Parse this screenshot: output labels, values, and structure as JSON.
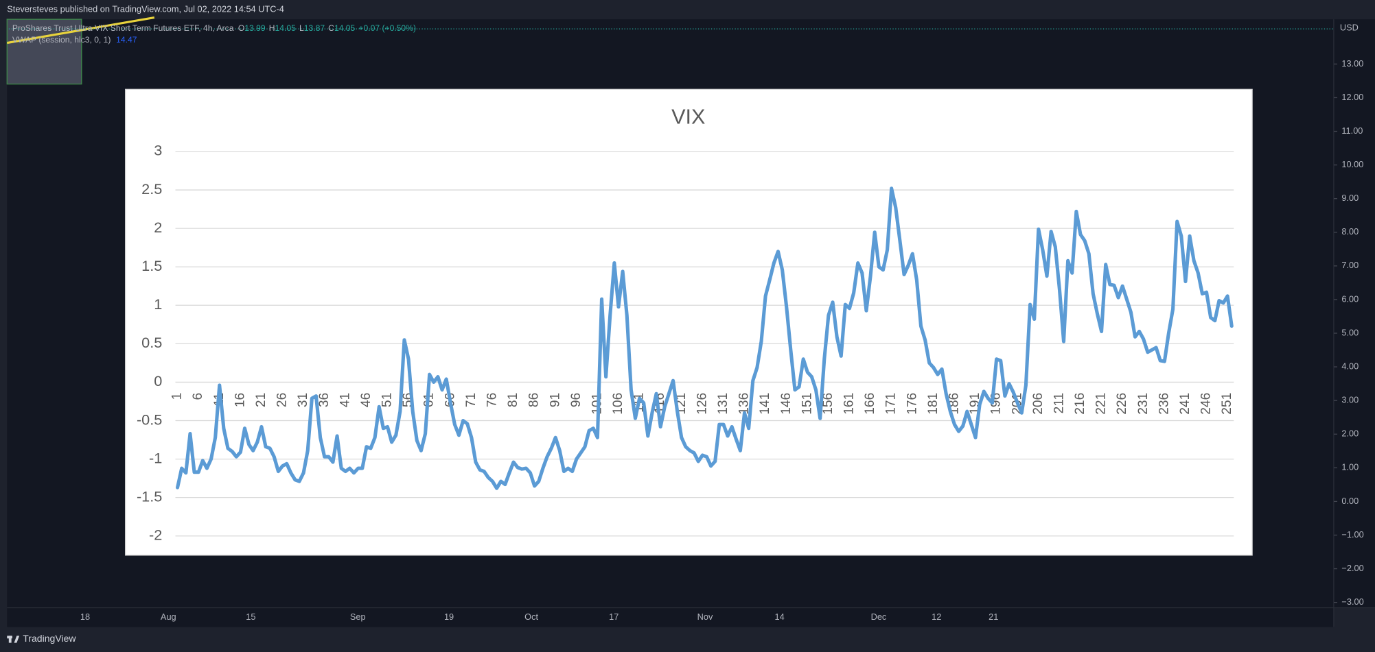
{
  "header": {
    "title": "Steversteves published on TradingView.com, Jul 02, 2022 14:54 UTC-4"
  },
  "legend": {
    "symbol": "ProShares Trust Ultra VIX Short Term Futures ETF, 4h, Arca",
    "ohlc": [
      {
        "label": "O",
        "value": "13.99"
      },
      {
        "label": "H",
        "value": "14.05"
      },
      {
        "label": "L",
        "value": "13.87"
      },
      {
        "label": "C",
        "value": "14.05"
      }
    ],
    "change": "+0.07 (+0.50%)",
    "indicator": {
      "name": "VWAP (session, hlc3, 0, 1)",
      "value": "14.47"
    }
  },
  "price_axis": {
    "currency": "USD",
    "ylim": [
      -3.16,
      14.33
    ],
    "yticks": [
      {
        "value": 13,
        "label": "13.00"
      },
      {
        "value": 12,
        "label": "12.00"
      },
      {
        "value": 11,
        "label": "11.00"
      },
      {
        "value": 10,
        "label": "10.00"
      },
      {
        "value": 9,
        "label": "9.00"
      },
      {
        "value": 8,
        "label": "8.00"
      },
      {
        "value": 7,
        "label": "7.00"
      },
      {
        "value": 6,
        "label": "6.00"
      },
      {
        "value": 5,
        "label": "5.00"
      },
      {
        "value": 4,
        "label": "4.00"
      },
      {
        "value": 3,
        "label": "3.00"
      },
      {
        "value": 2,
        "label": "2.00"
      },
      {
        "value": 1,
        "label": "1.00"
      },
      {
        "value": 0,
        "label": "0.00"
      },
      {
        "value": -1,
        "label": "−1.00"
      },
      {
        "value": -2,
        "label": "−2.00"
      },
      {
        "value": -3,
        "label": "−3.00"
      }
    ]
  },
  "time_axis": {
    "labels": [
      "18",
      "Aug",
      "15",
      "Sep",
      "19",
      "Oct",
      "17",
      "Nov",
      "14",
      "Dec",
      "12",
      "21"
    ]
  },
  "footer": {
    "brand": "TradingView"
  },
  "chart_data": {
    "type": "line",
    "title": "VIX",
    "color": "#5b9bd5",
    "grid": true,
    "ylim": [
      -2,
      3
    ],
    "yticks": [
      -2,
      -1.5,
      -1,
      -0.5,
      0,
      0.5,
      1,
      1.5,
      2,
      2.5,
      3
    ],
    "categories": [
      1,
      null,
      null,
      null,
      null,
      6,
      null,
      null,
      null,
      null,
      11,
      null,
      null,
      null,
      null,
      16,
      null,
      null,
      null,
      null,
      21,
      null,
      null,
      null,
      null,
      26,
      null,
      null,
      null,
      null,
      31,
      null,
      null,
      null,
      null,
      36,
      null,
      null,
      null,
      null,
      41,
      null,
      null,
      null,
      null,
      46,
      null,
      null,
      null,
      null,
      51,
      null,
      null,
      null,
      null,
      56,
      null,
      null,
      null,
      null,
      61,
      null,
      null,
      null,
      null,
      66,
      null,
      null,
      null,
      null,
      71,
      null,
      null,
      null,
      null,
      76,
      null,
      null,
      null,
      null,
      81,
      null,
      null,
      null,
      null,
      86,
      null,
      null,
      null,
      null,
      91,
      null,
      null,
      null,
      null,
      96,
      null,
      null,
      null,
      null,
      101,
      null,
      null,
      null,
      null,
      106,
      null,
      null,
      null,
      null,
      111,
      null,
      null,
      null,
      null,
      116,
      null,
      null,
      null,
      null,
      121,
      null,
      null,
      null,
      null,
      126,
      null,
      null,
      null,
      null,
      131,
      null,
      null,
      null,
      null,
      136,
      null,
      null,
      null,
      null,
      141,
      null,
      null,
      null,
      null,
      146,
      null,
      null,
      null,
      null,
      151,
      null,
      null,
      null,
      null,
      156,
      null,
      null,
      null,
      null,
      161,
      null,
      null,
      null,
      null,
      166,
      null,
      null,
      null,
      null,
      171,
      null,
      null,
      null,
      null,
      176,
      null,
      null,
      null,
      null,
      181,
      null,
      null,
      null,
      null,
      186,
      null,
      null,
      null,
      null,
      191,
      null,
      null,
      null,
      null,
      196,
      null,
      null,
      null,
      null,
      201,
      null,
      null,
      null,
      null,
      206,
      null,
      null,
      null,
      null,
      211,
      null,
      null,
      null,
      null,
      216,
      null,
      null,
      null,
      null,
      221,
      null,
      null,
      null,
      null,
      226,
      null,
      null,
      null,
      null,
      231,
      null,
      null,
      null,
      null,
      236,
      null,
      null,
      null,
      null,
      241,
      null,
      null,
      null,
      null,
      246,
      null,
      null,
      null,
      null,
      251,
      null
    ],
    "values": [
      -1.37,
      -1.12,
      -1.18,
      -0.67,
      -1.17,
      -1.17,
      -1.02,
      -1.12,
      -1.0,
      -0.72,
      -0.04,
      -0.6,
      -0.86,
      -0.9,
      -0.97,
      -0.91,
      -0.6,
      -0.81,
      -0.89,
      -0.78,
      -0.58,
      -0.84,
      -0.86,
      -0.97,
      -1.16,
      -1.09,
      -1.06,
      -1.18,
      -1.27,
      -1.29,
      -1.18,
      -0.89,
      -0.21,
      -0.18,
      -0.72,
      -0.97,
      -0.97,
      -1.04,
      -0.7,
      -1.12,
      -1.16,
      -1.12,
      -1.18,
      -1.12,
      -1.12,
      -0.84,
      -0.86,
      -0.72,
      -0.32,
      -0.6,
      -0.58,
      -0.78,
      -0.69,
      -0.38,
      0.55,
      0.3,
      -0.38,
      -0.76,
      -0.89,
      -0.67,
      0.1,
      0.0,
      0.07,
      -0.1,
      0.04,
      -0.27,
      -0.55,
      -0.69,
      -0.5,
      -0.54,
      -0.72,
      -1.04,
      -1.14,
      -1.16,
      -1.24,
      -1.29,
      -1.38,
      -1.29,
      -1.33,
      -1.18,
      -1.04,
      -1.11,
      -1.13,
      -1.12,
      -1.18,
      -1.35,
      -1.29,
      -1.12,
      -0.97,
      -0.86,
      -0.72,
      -0.89,
      -1.16,
      -1.12,
      -1.16,
      -1.0,
      -0.92,
      -0.84,
      -0.63,
      -0.6,
      -0.72,
      1.08,
      0.07,
      0.87,
      1.55,
      0.98,
      1.44,
      0.87,
      -0.1,
      -0.47,
      -0.21,
      -0.27,
      -0.7,
      -0.4,
      -0.15,
      -0.58,
      -0.32,
      -0.15,
      0.02,
      -0.38,
      -0.72,
      -0.84,
      -0.89,
      -0.92,
      -1.03,
      -0.95,
      -0.97,
      -1.09,
      -1.03,
      -0.55,
      -0.55,
      -0.7,
      -0.58,
      -0.74,
      -0.89,
      -0.4,
      -0.6,
      0.02,
      0.19,
      0.53,
      1.12,
      1.33,
      1.55,
      1.7,
      1.46,
      0.98,
      0.42,
      -0.1,
      -0.06,
      0.3,
      0.13,
      0.07,
      -0.1,
      -0.47,
      0.3,
      0.87,
      1.04,
      0.59,
      0.34,
      1.01,
      0.96,
      1.16,
      1.55,
      1.42,
      0.93,
      1.38,
      1.95,
      1.5,
      1.46,
      1.72,
      2.52,
      2.27,
      1.84,
      1.4,
      1.52,
      1.67,
      1.33,
      0.73,
      0.55,
      0.25,
      0.19,
      0.1,
      0.17,
      -0.15,
      -0.38,
      -0.55,
      -0.64,
      -0.57,
      -0.38,
      -0.55,
      -0.72,
      -0.29,
      -0.12,
      -0.21,
      -0.27,
      0.3,
      0.28,
      -0.18,
      -0.02,
      -0.13,
      -0.27,
      -0.4,
      -0.04,
      1.01,
      0.82,
      1.99,
      1.72,
      1.38,
      1.96,
      1.76,
      1.21,
      0.53,
      1.58,
      1.42,
      2.22,
      1.92,
      1.84,
      1.67,
      1.15,
      0.89,
      0.66,
      1.53,
      1.27,
      1.26,
      1.1,
      1.25,
      1.08,
      0.91,
      0.59,
      0.66,
      0.56,
      0.39,
      0.42,
      0.45,
      0.28,
      0.27,
      0.64,
      0.95,
      2.09,
      1.9,
      1.31,
      1.9,
      1.58,
      1.42,
      1.15,
      1.17,
      0.84,
      0.8,
      1.06,
      1.03,
      1.12,
      0.73
    ]
  }
}
